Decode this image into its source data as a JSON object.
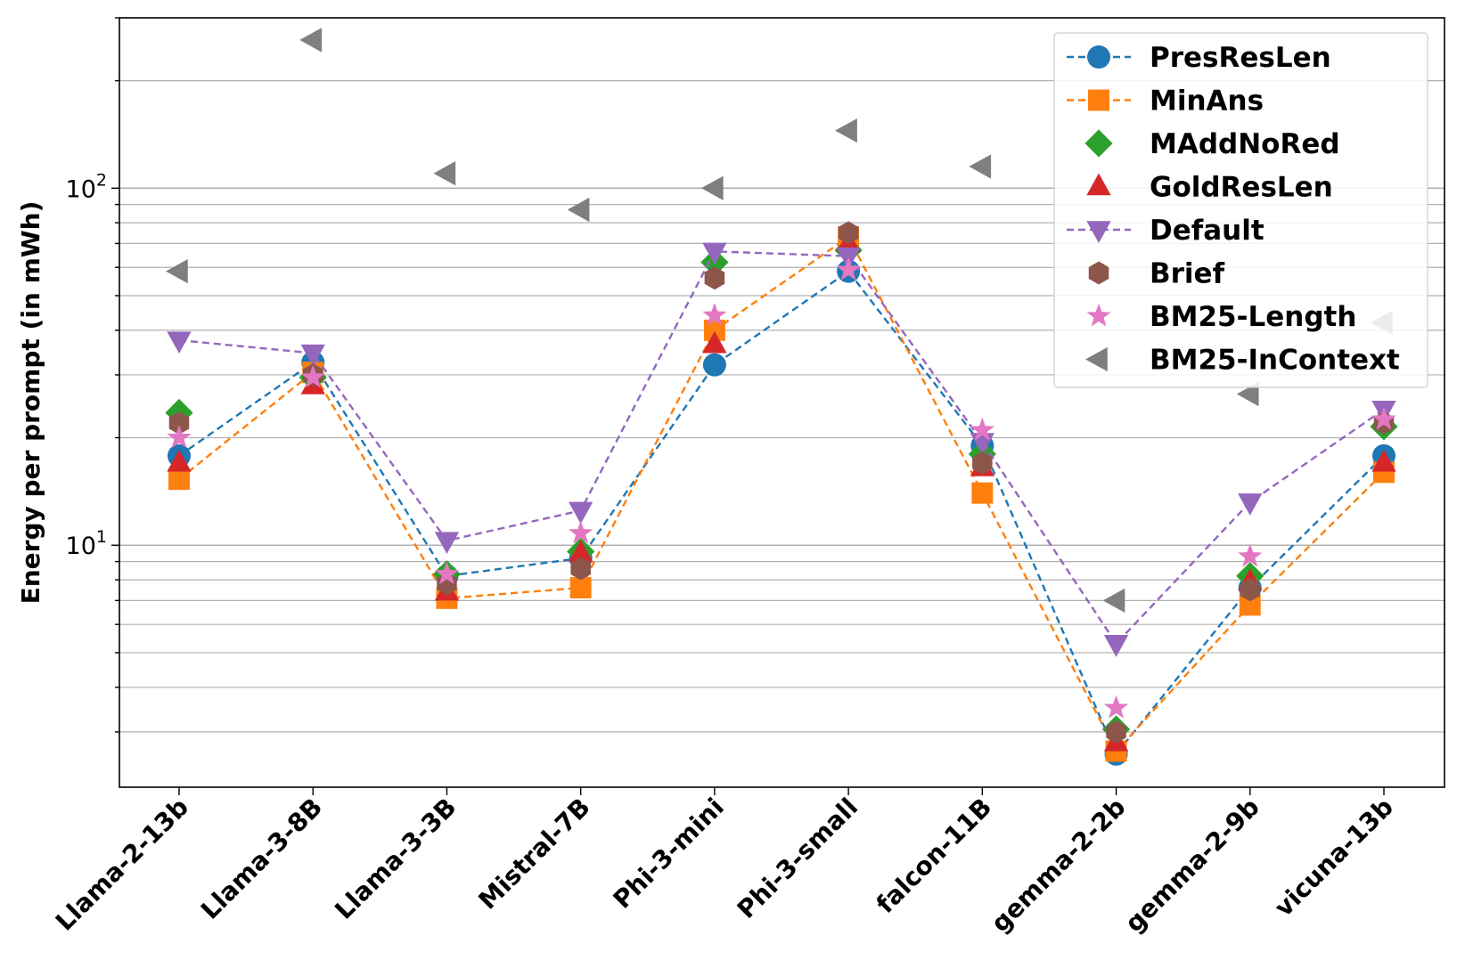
{
  "chart_data": {
    "type": "line",
    "title": "",
    "xlabel": "",
    "ylabel": "Energy per prompt (in mWh)",
    "yscale": "log",
    "ylim": [
      2.1,
      300
    ],
    "y_ticks": [
      {
        "value": 10,
        "base": "10",
        "exp": "1"
      },
      {
        "value": 100,
        "base": "10",
        "exp": "2"
      }
    ],
    "grid": "y-major-and-minor",
    "legend_position": "top-right",
    "categories": [
      "Llama-2-13b",
      "Llama-3-8B",
      "Llama-3-3B",
      "Mistral-7B",
      "Phi-3-mini",
      "Phi-3-small",
      "falcon-11B",
      "gemma-2-2b",
      "gemma-2-9b",
      "vicuna-13b"
    ],
    "series": [
      {
        "name": "PresResLen",
        "color": "#1f77b4",
        "marker": "circle",
        "line": "dashed",
        "values": [
          17.8,
          32.5,
          8.2,
          9.2,
          32.0,
          58.5,
          19.0,
          2.6,
          7.6,
          17.8
        ]
      },
      {
        "name": "MinAns",
        "color": "#ff7f0e",
        "marker": "square",
        "line": "dashed",
        "values": [
          15.3,
          30.5,
          7.1,
          7.6,
          40.0,
          73.0,
          14.0,
          2.65,
          6.8,
          16.0
        ]
      },
      {
        "name": "MAddNoRed",
        "color": "#2ca02c",
        "marker": "diamond",
        "line": "none",
        "values": [
          23.5,
          29.5,
          8.3,
          9.6,
          62.0,
          67.0,
          18.0,
          3.05,
          8.2,
          21.5
        ]
      },
      {
        "name": "GoldResLen",
        "color": "#d62728",
        "marker": "triangle-up",
        "line": "none",
        "values": [
          17.0,
          28.0,
          7.4,
          9.5,
          36.5,
          70.0,
          16.5,
          2.8,
          7.9,
          17.0
        ]
      },
      {
        "name": "Default",
        "color": "#9467bd",
        "marker": "triangle-down",
        "line": "dashed",
        "values": [
          37.5,
          34.5,
          10.3,
          12.5,
          66.5,
          64.5,
          19.5,
          5.3,
          13.2,
          24.0
        ]
      },
      {
        "name": "Brief",
        "color": "#8c564b",
        "marker": "hexagon",
        "line": "none",
        "values": [
          22.0,
          30.0,
          7.8,
          8.6,
          56.0,
          75.0,
          17.0,
          3.0,
          7.5,
          22.0
        ]
      },
      {
        "name": "BM25-Length",
        "color": "#e377c2",
        "marker": "star",
        "line": "none",
        "values": [
          20.0,
          29.5,
          8.3,
          10.8,
          44.0,
          59.0,
          21.0,
          3.5,
          9.3,
          22.5
        ]
      },
      {
        "name": "BM25-InContext",
        "color": "#7f7f7f",
        "marker": "triangle-left",
        "line": "none",
        "values": [
          58.5,
          260.0,
          110.0,
          87.0,
          100.0,
          145.0,
          115.0,
          7.0,
          26.5,
          42.0
        ]
      }
    ]
  }
}
